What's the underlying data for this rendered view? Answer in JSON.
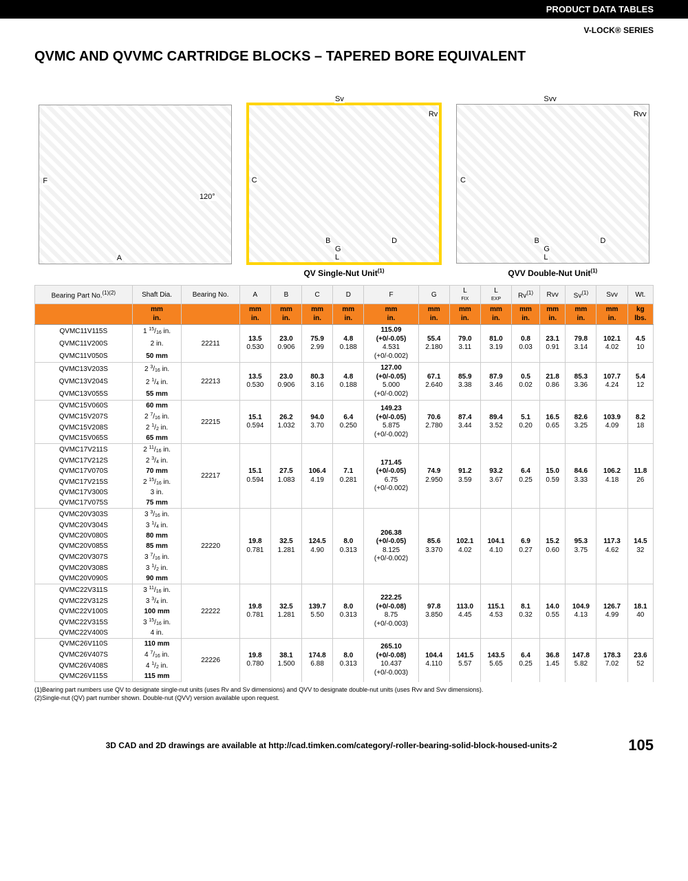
{
  "header": {
    "product_data_tables": "PRODUCT DATA TABLES",
    "series": "V-LOCK® SERIES"
  },
  "title": "QVMC AND QVVMC CARTRIDGE BLOCKS – TAPERED BORE EQUIVALENT",
  "diagrams": {
    "front": {
      "labels": {
        "F": "F",
        "A": "A",
        "angle": "120°"
      }
    },
    "qv": {
      "caption": "QV Single-Nut Unit",
      "caption_sup": "(1)",
      "labels": {
        "Sv": "Sv",
        "Rv": "Rv",
        "C": "C",
        "B": "B",
        "D": "D",
        "G": "G",
        "L": "L"
      }
    },
    "qvv": {
      "caption": "QVV Double-Nut Unit",
      "caption_sup": "(1)",
      "labels": {
        "Svv": "Svv",
        "Rvv": "Rvv",
        "C": "C",
        "B": "B",
        "D": "D",
        "G": "G",
        "L": "L"
      }
    }
  },
  "table": {
    "head": {
      "partno": "Bearing Part No.",
      "partno_sup": "(1)(2)",
      "shaft": "Shaft Dia.",
      "bearing": "Bearing No.",
      "A": "A",
      "B": "B",
      "C": "C",
      "D": "D",
      "F": "F",
      "G": "G",
      "Lfix": "L",
      "Lfix_sub": "FIX",
      "Lexp": "L",
      "Lexp_sub": "EXP",
      "Rv": "Rv",
      "Rv_sup": "(1)",
      "Rvv": "Rvv",
      "Sv": "Sv",
      "Sv_sup": "(1)",
      "Svv": "Svv",
      "Wt": "Wt."
    },
    "units": {
      "mm_in": "mm\nin.",
      "kg_lbs": "kg\nlbs."
    },
    "groups": [
      {
        "bearing": "22211",
        "dims": {
          "A": [
            "13.5",
            "0.530"
          ],
          "B": [
            "23.0",
            "0.906"
          ],
          "C": [
            "75.9",
            "2.99"
          ],
          "D": [
            "4.8",
            "0.188"
          ],
          "F": [
            "115.09",
            "(+0/-0.05)",
            "4.531",
            "(+0/-0.002)"
          ],
          "G": [
            "55.4",
            "2.180"
          ],
          "Lfix": [
            "79.0",
            "3.11"
          ],
          "Lexp": [
            "81.0",
            "3.19"
          ],
          "Rv": [
            "0.8",
            "0.03"
          ],
          "Rvv": [
            "23.1",
            "0.91"
          ],
          "Sv": [
            "79.8",
            "3.14"
          ],
          "Svv": [
            "102.1",
            "4.02"
          ],
          "Wt": [
            "4.5",
            "10"
          ]
        },
        "rows": [
          {
            "part": "QVMC11V115S",
            "shaft_top": "1",
            "shaft_frac": [
              "15",
              "16"
            ],
            "shaft_unit": " in."
          },
          {
            "part": "QVMC11V200S",
            "shaft_plain": "2 in."
          },
          {
            "part": "QVMC11V050S",
            "shaft_bold": "50 mm"
          }
        ]
      },
      {
        "bearing": "22213",
        "dims": {
          "A": [
            "13.5",
            "0.530"
          ],
          "B": [
            "23.0",
            "0.906"
          ],
          "C": [
            "80.3",
            "3.16"
          ],
          "D": [
            "4.8",
            "0.188"
          ],
          "F": [
            "127.00",
            "(+0/-0.05)",
            "5.000",
            "(+0/-0.002)"
          ],
          "G": [
            "67.1",
            "2.640"
          ],
          "Lfix": [
            "85.9",
            "3.38"
          ],
          "Lexp": [
            "87.9",
            "3.46"
          ],
          "Rv": [
            "0.5",
            "0.02"
          ],
          "Rvv": [
            "21.8",
            "0.86"
          ],
          "Sv": [
            "85.3",
            "3.36"
          ],
          "Svv": [
            "107.7",
            "4.24"
          ],
          "Wt": [
            "5.4",
            "12"
          ]
        },
        "rows": [
          {
            "part": "QVMC13V203S",
            "shaft_top": "2",
            "shaft_frac": [
              "3",
              "16"
            ],
            "shaft_unit": " in."
          },
          {
            "part": "QVMC13V204S",
            "shaft_top": "2",
            "shaft_frac": [
              "1",
              "4"
            ],
            "shaft_unit": " in."
          },
          {
            "part": "QVMC13V055S",
            "shaft_bold": "55 mm"
          }
        ]
      },
      {
        "bearing": "22215",
        "dims": {
          "A": [
            "15.1",
            "0.594"
          ],
          "B": [
            "26.2",
            "1.032"
          ],
          "C": [
            "94.0",
            "3.70"
          ],
          "D": [
            "6.4",
            "0.250"
          ],
          "F": [
            "149.23",
            "(+0/-0.05)",
            "5.875",
            "(+0/-0.002)"
          ],
          "G": [
            "70.6",
            "2.780"
          ],
          "Lfix": [
            "87.4",
            "3.44"
          ],
          "Lexp": [
            "89.4",
            "3.52"
          ],
          "Rv": [
            "5.1",
            "0.20"
          ],
          "Rvv": [
            "16.5",
            "0.65"
          ],
          "Sv": [
            "82.6",
            "3.25"
          ],
          "Svv": [
            "103.9",
            "4.09"
          ],
          "Wt": [
            "8.2",
            "18"
          ]
        },
        "rows": [
          {
            "part": "QVMC15V060S",
            "shaft_bold": "60 mm"
          },
          {
            "part": "QVMC15V207S",
            "shaft_top": "2",
            "shaft_frac": [
              "7",
              "16"
            ],
            "shaft_unit": " in."
          },
          {
            "part": "QVMC15V208S",
            "shaft_top": "2",
            "shaft_frac": [
              "1",
              "2"
            ],
            "shaft_unit": " in."
          },
          {
            "part": "QVMC15V065S",
            "shaft_bold": "65 mm"
          }
        ]
      },
      {
        "bearing": "22217",
        "dims": {
          "A": [
            "15.1",
            "0.594"
          ],
          "B": [
            "27.5",
            "1.083"
          ],
          "C": [
            "106.4",
            "4.19"
          ],
          "D": [
            "7.1",
            "0.281"
          ],
          "F": [
            "171.45",
            "(+0/-0.05)",
            "6.75",
            "(+0/-0.002)"
          ],
          "G": [
            "74.9",
            "2.950"
          ],
          "Lfix": [
            "91.2",
            "3.59"
          ],
          "Lexp": [
            "93.2",
            "3.67"
          ],
          "Rv": [
            "6.4",
            "0.25"
          ],
          "Rvv": [
            "15.0",
            "0.59"
          ],
          "Sv": [
            "84.6",
            "3.33"
          ],
          "Svv": [
            "106.2",
            "4.18"
          ],
          "Wt": [
            "11.8",
            "26"
          ]
        },
        "rows": [
          {
            "part": "QVMC17V211S",
            "shaft_top": "2",
            "shaft_frac": [
              "11",
              "16"
            ],
            "shaft_unit": " in."
          },
          {
            "part": "QVMC17V212S",
            "shaft_top": "2",
            "shaft_frac": [
              "3",
              "4"
            ],
            "shaft_unit": " in."
          },
          {
            "part": "QVMC17V070S",
            "shaft_bold": "70 mm"
          },
          {
            "part": "QVMC17V215S",
            "shaft_top": "2",
            "shaft_frac": [
              "15",
              "16"
            ],
            "shaft_unit": " in."
          },
          {
            "part": "QVMC17V300S",
            "shaft_plain": "3 in."
          },
          {
            "part": "QVMC17V075S",
            "shaft_bold": "75 mm"
          }
        ]
      },
      {
        "bearing": "22220",
        "dims": {
          "A": [
            "19.8",
            "0.781"
          ],
          "B": [
            "32.5",
            "1.281"
          ],
          "C": [
            "124.5",
            "4.90"
          ],
          "D": [
            "8.0",
            "0.313"
          ],
          "F": [
            "206.38",
            "(+0/-0.05)",
            "8.125",
            "(+0/-0.002)"
          ],
          "G": [
            "85.6",
            "3.370"
          ],
          "Lfix": [
            "102.1",
            "4.02"
          ],
          "Lexp": [
            "104.1",
            "4.10"
          ],
          "Rv": [
            "6.9",
            "0.27"
          ],
          "Rvv": [
            "15.2",
            "0.60"
          ],
          "Sv": [
            "95.3",
            "3.75"
          ],
          "Svv": [
            "117.3",
            "4.62"
          ],
          "Wt": [
            "14.5",
            "32"
          ]
        },
        "rows": [
          {
            "part": "QVMC20V303S",
            "shaft_top": "3",
            "shaft_frac": [
              "3",
              "16"
            ],
            "shaft_unit": " in."
          },
          {
            "part": "QVMC20V304S",
            "shaft_top": "3",
            "shaft_frac": [
              "1",
              "4"
            ],
            "shaft_unit": " in."
          },
          {
            "part": "QVMC20V080S",
            "shaft_bold": "80 mm"
          },
          {
            "part": "QVMC20V085S",
            "shaft_bold": "85 mm"
          },
          {
            "part": "QVMC20V307S",
            "shaft_top": "3",
            "shaft_frac": [
              "7",
              "16"
            ],
            "shaft_unit": " in."
          },
          {
            "part": "QVMC20V308S",
            "shaft_top": "3",
            "shaft_frac": [
              "1",
              "2"
            ],
            "shaft_unit": " in."
          },
          {
            "part": "QVMC20V090S",
            "shaft_bold": "90 mm"
          }
        ]
      },
      {
        "bearing": "22222",
        "dims": {
          "A": [
            "19.8",
            "0.781"
          ],
          "B": [
            "32.5",
            "1.281"
          ],
          "C": [
            "139.7",
            "5.50"
          ],
          "D": [
            "8.0",
            "0.313"
          ],
          "F": [
            "222.25",
            "(+0/-0.08)",
            "8.75",
            "(+0/-0.003)"
          ],
          "G": [
            "97.8",
            "3.850"
          ],
          "Lfix": [
            "113.0",
            "4.45"
          ],
          "Lexp": [
            "115.1",
            "4.53"
          ],
          "Rv": [
            "8.1",
            "0.32"
          ],
          "Rvv": [
            "14.0",
            "0.55"
          ],
          "Sv": [
            "104.9",
            "4.13"
          ],
          "Svv": [
            "126.7",
            "4.99"
          ],
          "Wt": [
            "18.1",
            "40"
          ]
        },
        "rows": [
          {
            "part": "QVMC22V311S",
            "shaft_top": "3",
            "shaft_frac": [
              "11",
              "16"
            ],
            "shaft_unit": " in."
          },
          {
            "part": "QVMC22V312S",
            "shaft_top": "3",
            "shaft_frac": [
              "3",
              "4"
            ],
            "shaft_unit": " in."
          },
          {
            "part": "QVMC22V100S",
            "shaft_bold": "100 mm"
          },
          {
            "part": "QVMC22V315S",
            "shaft_top": "3",
            "shaft_frac": [
              "15",
              "16"
            ],
            "shaft_unit": " in."
          },
          {
            "part": "QVMC22V400S",
            "shaft_plain": "4 in."
          }
        ]
      },
      {
        "bearing": "22226",
        "dims": {
          "A": [
            "19.8",
            "0.780"
          ],
          "B": [
            "38.1",
            "1.500"
          ],
          "C": [
            "174.8",
            "6.88"
          ],
          "D": [
            "8.0",
            "0.313"
          ],
          "F": [
            "265.10",
            "(+0/-0.08)",
            "10.437",
            "(+0/-0.003)"
          ],
          "G": [
            "104.4",
            "4.110"
          ],
          "Lfix": [
            "141.5",
            "5.57"
          ],
          "Lexp": [
            "143.5",
            "5.65"
          ],
          "Rv": [
            "6.4",
            "0.25"
          ],
          "Rvv": [
            "36.8",
            "1.45"
          ],
          "Sv": [
            "147.8",
            "5.82"
          ],
          "Svv": [
            "178.3",
            "7.02"
          ],
          "Wt": [
            "23.6",
            "52"
          ]
        },
        "rows": [
          {
            "part": "QVMC26V110S",
            "shaft_bold": "110 mm"
          },
          {
            "part": "QVMC26V407S",
            "shaft_top": "4",
            "shaft_frac": [
              "7",
              "16"
            ],
            "shaft_unit": " in."
          },
          {
            "part": "QVMC26V408S",
            "shaft_top": "4",
            "shaft_frac": [
              "1",
              "2"
            ],
            "shaft_unit": " in."
          },
          {
            "part": "QVMC26V115S",
            "shaft_bold": "115 mm"
          }
        ]
      }
    ]
  },
  "footnotes": {
    "n1": "(1)Bearing part numbers use QV to designate single-nut units (uses Rv and Sv dimensions) and QVV to designate double-nut units (uses Rvv and Svv dimensions).",
    "n2": "(2)Single-nut (QV) part number shown. Double-nut (QVV) version available upon request."
  },
  "footer": {
    "cad_note": "3D CAD and 2D drawings are available at http://cad.timken.com/category/-roller-bearing-solid-block-housed-units-2",
    "page": "105"
  },
  "styling": {
    "accent_orange": "#f58220",
    "highlight_yellow": "#ffd400",
    "black": "#000000",
    "gray_border": "#cccccc",
    "bg": "#ffffff"
  }
}
